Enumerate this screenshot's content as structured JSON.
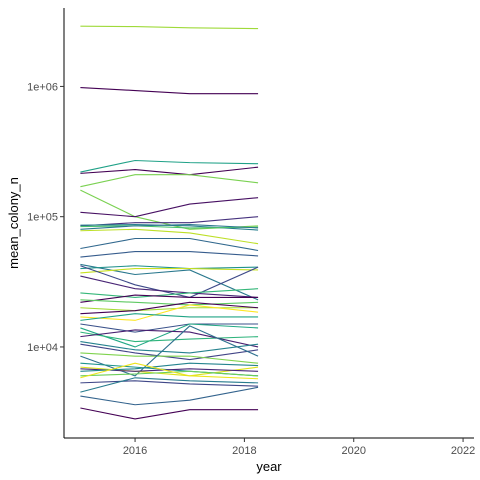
{
  "chart_data": {
    "type": "line",
    "xlabel": "year",
    "ylabel": "mean_colony_n",
    "y_scale": "log10",
    "xlim": [
      2014.7,
      2022.2
    ],
    "ylim": [
      2000,
      4000000
    ],
    "x_ticks": [
      2016,
      2018,
      2020,
      2022
    ],
    "x_tick_labels": [
      "2016",
      "2018",
      "2020",
      "2022"
    ],
    "y_ticks": [
      10000,
      100000,
      1000000
    ],
    "y_tick_labels": [
      "1e+04",
      "1e+05",
      "1e+06"
    ],
    "grid": false,
    "legend": "none",
    "x": [
      2015,
      2016,
      2017,
      2018.25
    ],
    "series": [
      {
        "color": "#9FDA3A",
        "values": [
          2900000,
          2880000,
          2820000,
          2780000
        ]
      },
      {
        "color": "#440154",
        "values": [
          980000,
          930000,
          880000,
          880000
        ]
      },
      {
        "color": "#1FA187",
        "values": [
          220000,
          270000,
          260000,
          255000
        ]
      },
      {
        "color": "#440154",
        "values": [
          215000,
          230000,
          210000,
          240000
        ]
      },
      {
        "color": "#7AD151",
        "values": [
          170000,
          210000,
          210000,
          182000
        ]
      },
      {
        "color": "#7AD151",
        "values": [
          160000,
          100000,
          80000,
          85000
        ]
      },
      {
        "color": "#471063",
        "values": [
          108000,
          100000,
          125000,
          140000
        ]
      },
      {
        "color": "#46327E",
        "values": [
          85000,
          90000,
          90000,
          100000
        ]
      },
      {
        "color": "#277F8E",
        "values": [
          86000,
          87000,
          85000,
          79000
        ]
      },
      {
        "color": "#4AC16D",
        "values": [
          84000,
          85000,
          82000,
          83000
        ]
      },
      {
        "color": "#2A788E",
        "values": [
          80000,
          85000,
          87000,
          82000
        ]
      },
      {
        "color": "#BDDF26",
        "values": [
          78000,
          80000,
          75000,
          62000
        ]
      },
      {
        "color": "#31688E",
        "values": [
          57000,
          68000,
          68000,
          55000
        ]
      },
      {
        "color": "#365C8D",
        "values": [
          49000,
          54000,
          54000,
          50000
        ]
      },
      {
        "color": "#2A788E",
        "values": [
          43000,
          36000,
          39000,
          23000
        ]
      },
      {
        "color": "#21918C",
        "values": [
          40000,
          42000,
          40000,
          41000
        ]
      },
      {
        "color": "#C8E020",
        "values": [
          37000,
          40000,
          40000,
          39000
        ]
      },
      {
        "color": "#3E4A89",
        "values": [
          42000,
          30000,
          24000,
          41000
        ]
      },
      {
        "color": "#482475",
        "values": [
          35000,
          28000,
          26000,
          24000
        ]
      },
      {
        "color": "#35B779",
        "values": [
          26000,
          24000,
          26000,
          28000
        ]
      },
      {
        "color": "#440154",
        "values": [
          22000,
          25000,
          24000,
          24000
        ]
      },
      {
        "color": "#5EC962",
        "values": [
          23000,
          22000,
          21000,
          22000
        ]
      },
      {
        "color": "#A5DB36",
        "values": [
          20000,
          19000,
          20000,
          20000
        ]
      },
      {
        "color": "#440154",
        "values": [
          18000,
          19000,
          22000,
          20000
        ]
      },
      {
        "color": "#FDE725",
        "values": [
          17000,
          16000,
          21000,
          18500
        ]
      },
      {
        "color": "#20A486",
        "values": [
          16000,
          18000,
          17000,
          17000
        ]
      },
      {
        "color": "#3B528B",
        "values": [
          15000,
          13000,
          15000,
          15000
        ]
      },
      {
        "color": "#22A884",
        "values": [
          14000,
          10000,
          15000,
          14000
        ]
      },
      {
        "color": "#2FB47C",
        "values": [
          13000,
          11000,
          11500,
          12000
        ]
      },
      {
        "color": "#481F70",
        "values": [
          12000,
          13500,
          13000,
          10000
        ]
      },
      {
        "color": "#26828E",
        "values": [
          11000,
          9500,
          9000,
          10500
        ]
      },
      {
        "color": "#414487",
        "values": [
          10500,
          9000,
          8000,
          9500
        ]
      },
      {
        "color": "#7FD34E",
        "values": [
          9000,
          8500,
          8500,
          7500
        ]
      },
      {
        "color": "#2D708E",
        "values": [
          8500,
          6000,
          14500,
          8500
        ]
      },
      {
        "color": "#DCE319",
        "values": [
          7000,
          6500,
          6000,
          7000
        ]
      },
      {
        "color": "#1F948C",
        "values": [
          7500,
          7000,
          6500,
          6000
        ]
      },
      {
        "color": "#482878",
        "values": [
          6800,
          6500,
          6800,
          6500
        ]
      },
      {
        "color": "#25848E",
        "values": [
          6500,
          6800,
          7500,
          7200
        ]
      },
      {
        "color": "#6CCE59",
        "values": [
          6000,
          6200,
          6500,
          6000
        ]
      },
      {
        "color": "#ECE51B",
        "values": [
          5800,
          7500,
          6000,
          5700
        ]
      },
      {
        "color": "#3F4788",
        "values": [
          5300,
          5500,
          5200,
          5000
        ]
      },
      {
        "color": "#287C8E",
        "values": [
          4500,
          5800,
          5500,
          5300
        ]
      },
      {
        "color": "#33638D",
        "values": [
          4200,
          3600,
          3900,
          4900
        ]
      },
      {
        "color": "#440154",
        "values": [
          3400,
          2800,
          3300,
          3300
        ]
      }
    ]
  }
}
